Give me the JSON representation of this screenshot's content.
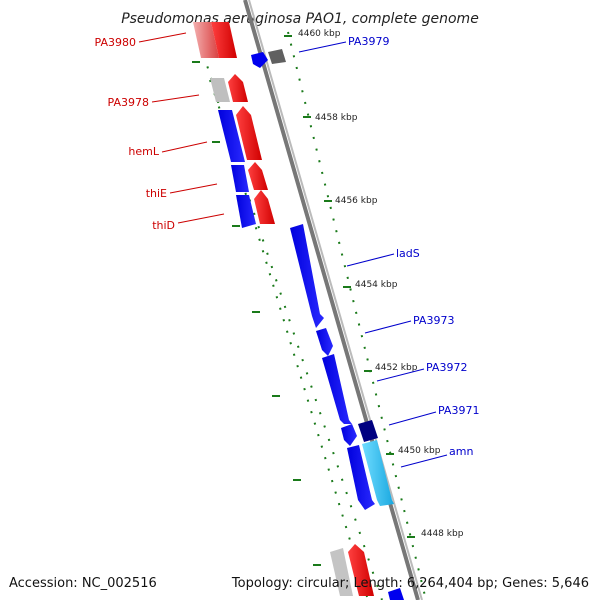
{
  "title": "Pseudomonas aeruginosa PAO1, complete genome",
  "footer": {
    "accession": "Accession: NC_002516",
    "summary": "Topology: circular; Length: 6,264,404 bp; Genes: 5,646"
  },
  "ticks": [
    "4460 kbp",
    "4458 kbp",
    "4456 kbp",
    "4454 kbp",
    "4452 kbp",
    "4450 kbp",
    "4448 kbp"
  ],
  "colors": {
    "reverse_label": "#cc0000",
    "forward_label": "#0000cc",
    "backbone": "#888888",
    "tick": "#1a7a1a",
    "red_gene": "#ee0000",
    "light_red_gene": "#f08080",
    "blue_gene": "#0000ee",
    "dark_blue_gene": "#000080",
    "cyan_gene": "#22bbee",
    "grey_gene": "#bbbbbb",
    "dark_grey_gene": "#555555"
  },
  "left_labels": [
    "PA3980",
    "PA3978",
    "hemL",
    "thiE",
    "thiD"
  ],
  "right_labels": [
    "PA3979",
    "ladS",
    "PA3973",
    "PA3972",
    "PA3971",
    "amn"
  ]
}
